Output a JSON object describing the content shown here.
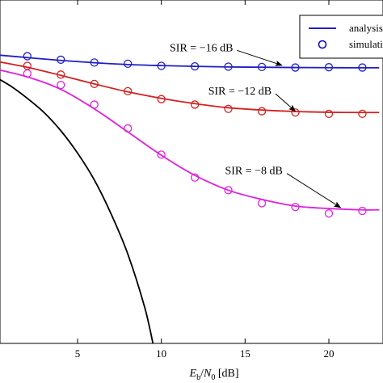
{
  "chart_data": {
    "type": "line",
    "xlabel": "E_b/N_0 [dB]",
    "x_tick_labels": [
      "5",
      "10",
      "15",
      "20"
    ],
    "xlim": [
      0,
      23
    ],
    "y_scale": "log",
    "ylim": [
      1e-05,
      1
    ],
    "grid": false,
    "legend": {
      "placement": "top-right",
      "entries": [
        {
          "label": "analysis",
          "marker": "line",
          "color": "#0000cc"
        },
        {
          "label": "simulation",
          "marker": "circle",
          "color": "#0000cc"
        }
      ]
    },
    "series": [
      {
        "name": "",
        "role": "reference",
        "color": "#000000",
        "kind": "line",
        "x": [
          0,
          1,
          2,
          3,
          4,
          5,
          6,
          7,
          8,
          9,
          9.5
        ],
        "y": [
          0.078,
          0.056,
          0.037,
          0.023,
          0.0125,
          0.0059,
          0.0024,
          0.00077,
          0.0002,
          3.4e-05,
          1e-05
        ]
      },
      {
        "name": "SIR = −16 dB",
        "color": "#1f1fc4",
        "kind": "line",
        "x": [
          0,
          2,
          4,
          6,
          8,
          10,
          12,
          14,
          16,
          18,
          20,
          22,
          23
        ],
        "y": [
          0.16,
          0.145,
          0.132,
          0.122,
          0.115,
          0.111,
          0.108,
          0.106,
          0.105,
          0.104,
          0.1035,
          0.103,
          0.103
        ]
      },
      {
        "name": "SIR = −16 dB",
        "color": "#1f1fc4",
        "kind": "markers",
        "x": [
          2,
          4,
          6,
          8,
          10,
          12,
          14,
          16,
          18,
          20,
          22
        ],
        "y": [
          0.152,
          0.135,
          0.123,
          0.118,
          0.11,
          0.108,
          0.107,
          0.106,
          0.104,
          0.105,
          0.104
        ]
      },
      {
        "name": "SIR = −12 dB",
        "color": "#d42020",
        "kind": "line",
        "x": [
          0,
          2,
          4,
          6,
          8,
          10,
          12,
          14,
          16,
          18,
          20,
          22,
          23
        ],
        "y": [
          0.13,
          0.105,
          0.08,
          0.06,
          0.046,
          0.037,
          0.031,
          0.027,
          0.025,
          0.0238,
          0.0232,
          0.023,
          0.023
        ]
      },
      {
        "name": "SIR = −12 dB",
        "color": "#d42020",
        "kind": "markers",
        "x": [
          2,
          4,
          6,
          8,
          10,
          12,
          14,
          16,
          18,
          20,
          22
        ],
        "y": [
          0.11,
          0.082,
          0.06,
          0.047,
          0.036,
          0.03,
          0.026,
          0.024,
          0.023,
          0.022,
          0.022
        ]
      },
      {
        "name": "SIR = −8 dB",
        "color": "#e020e0",
        "kind": "line",
        "x": [
          0,
          2,
          4,
          6,
          8,
          10,
          12,
          14,
          16,
          18,
          20,
          22,
          23
        ],
        "y": [
          0.1,
          0.076,
          0.05,
          0.026,
          0.012,
          0.0055,
          0.0028,
          0.0017,
          0.00125,
          0.001,
          0.00092,
          0.00088,
          0.00088
        ]
      },
      {
        "name": "SIR = −8 dB",
        "color": "#e020e0",
        "kind": "markers",
        "x": [
          2,
          4,
          6,
          8,
          10,
          12,
          14,
          16,
          18,
          20,
          22
        ],
        "y": [
          0.085,
          0.058,
          0.03,
          0.0135,
          0.0056,
          0.0026,
          0.0017,
          0.0011,
          0.00097,
          0.00078,
          0.00085
        ]
      }
    ],
    "annotations": [
      {
        "text": "SIR = −16 dB",
        "series": "SIR = −16 dB",
        "arrow_to": {
          "x": 17.2,
          "y": 0.112
        },
        "label_at": {
          "x": 10.5,
          "y": 0.18
        }
      },
      {
        "text": "SIR = −12 dB",
        "series": "SIR = −12 dB",
        "arrow_to": {
          "x": 18,
          "y": 0.024
        },
        "label_at": {
          "x": 12.8,
          "y": 0.042
        }
      },
      {
        "text": "SIR = −8 dB",
        "series": "SIR = −8 dB",
        "arrow_to": {
          "x": 20.7,
          "y": 0.00095
        },
        "label_at": {
          "x": 13.8,
          "y": 0.0029
        }
      }
    ]
  }
}
